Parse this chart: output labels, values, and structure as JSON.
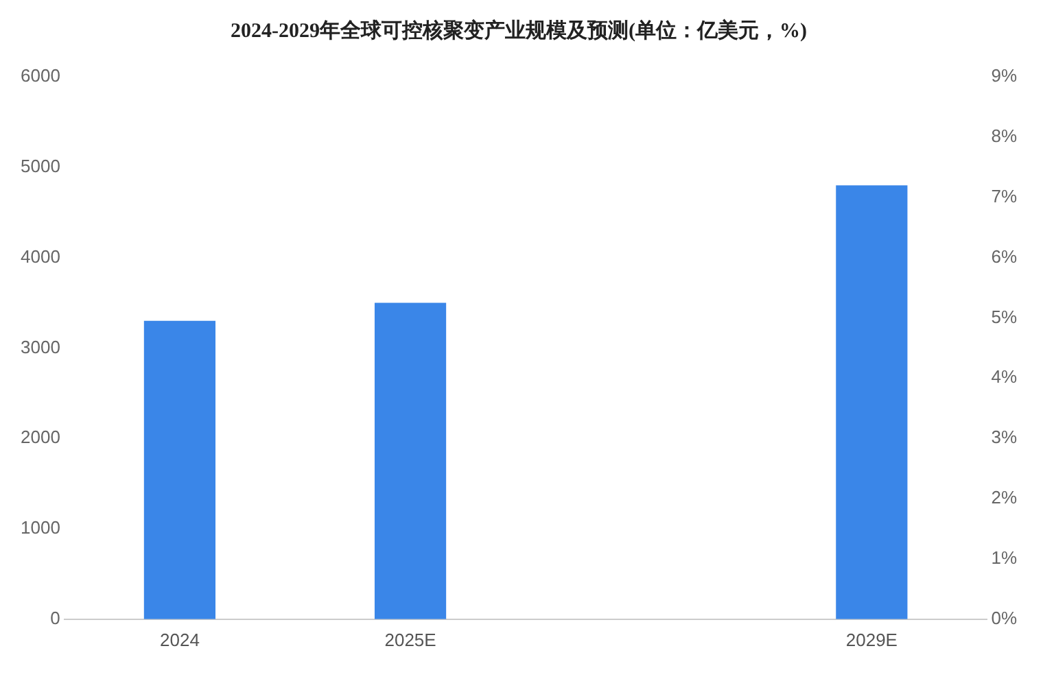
{
  "chart_data": {
    "type": "bar",
    "title": "2024-2029年全球可控核聚变产业规模及预测(单位：亿美元，%)",
    "categories": [
      "2024",
      "2025E",
      null,
      "2029E"
    ],
    "series": [
      {
        "color": "#3a86e8",
        "values": [
          3300,
          3500,
          null,
          4800
        ]
      }
    ],
    "ylim": [
      0,
      6000
    ],
    "yticks": [
      0,
      1000,
      2000,
      3000,
      4000,
      5000,
      6000
    ],
    "y2lim": [
      0,
      9
    ],
    "y2ticks": [
      {
        "value": 0,
        "label": "0%"
      },
      {
        "value": 1,
        "label": "1%"
      },
      {
        "value": 2,
        "label": "2%"
      },
      {
        "value": 3,
        "label": "3%"
      },
      {
        "value": 4,
        "label": "4%"
      },
      {
        "value": 5,
        "label": "5%"
      },
      {
        "value": 6,
        "label": "6%"
      },
      {
        "value": 7,
        "label": "7%"
      },
      {
        "value": 8,
        "label": "8%"
      },
      {
        "value": 9,
        "label": "9%"
      }
    ],
    "grid": false,
    "legend": false
  }
}
